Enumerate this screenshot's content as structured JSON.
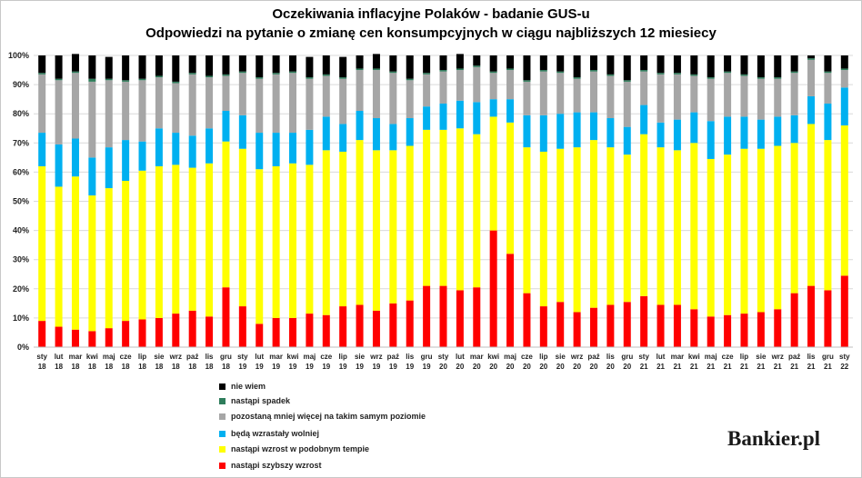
{
  "chart_data": {
    "type": "bar",
    "stacked": true,
    "title": "Oczekiwania inflacyjne Polaków - badanie GUS-u",
    "subtitle": "Odpowiedzi na pytanie o zmianę cen konsumpcyjnych w ciągu najbliższych 12 miesiecy",
    "ylim": [
      0,
      100
    ],
    "yticks": [
      "0%",
      "10%",
      "20%",
      "30%",
      "40%",
      "50%",
      "60%",
      "70%",
      "80%",
      "90%",
      "100%"
    ],
    "grid": true,
    "legend_position": "bottom-left",
    "categories": [
      [
        "sty",
        "18"
      ],
      [
        "lut",
        "18"
      ],
      [
        "mar",
        "18"
      ],
      [
        "kwi",
        "18"
      ],
      [
        "maj",
        "18"
      ],
      [
        "cze",
        "18"
      ],
      [
        "lip",
        "18"
      ],
      [
        "sie",
        "18"
      ],
      [
        "wrz",
        "18"
      ],
      [
        "paź",
        "18"
      ],
      [
        "lis",
        "18"
      ],
      [
        "gru",
        "18"
      ],
      [
        "sty",
        "19"
      ],
      [
        "lut",
        "19"
      ],
      [
        "mar",
        "19"
      ],
      [
        "kwi",
        "19"
      ],
      [
        "maj",
        "19"
      ],
      [
        "cze",
        "19"
      ],
      [
        "lip",
        "19"
      ],
      [
        "sie",
        "19"
      ],
      [
        "wrz",
        "19"
      ],
      [
        "paź",
        "19"
      ],
      [
        "lis",
        "19"
      ],
      [
        "gru",
        "19"
      ],
      [
        "sty",
        "20"
      ],
      [
        "lut",
        "20"
      ],
      [
        "mar",
        "20"
      ],
      [
        "kwi",
        "20"
      ],
      [
        "maj",
        "20"
      ],
      [
        "cze",
        "20"
      ],
      [
        "lip",
        "20"
      ],
      [
        "sie",
        "20"
      ],
      [
        "wrz",
        "20"
      ],
      [
        "paź",
        "20"
      ],
      [
        "lis",
        "20"
      ],
      [
        "gru",
        "20"
      ],
      [
        "sty",
        "21"
      ],
      [
        "lut",
        "21"
      ],
      [
        "mar",
        "21"
      ],
      [
        "kwi",
        "21"
      ],
      [
        "maj",
        "21"
      ],
      [
        "cze",
        "21"
      ],
      [
        "lip",
        "21"
      ],
      [
        "sie",
        "21"
      ],
      [
        "wrz",
        "21"
      ],
      [
        "paź",
        "21"
      ],
      [
        "lis",
        "21"
      ],
      [
        "gru",
        "21"
      ],
      [
        "sty",
        "22"
      ]
    ],
    "series": [
      {
        "name": "nastąpi szybszy wzrost",
        "color": "#ff0000",
        "values": [
          9,
          7,
          6,
          5.5,
          6.5,
          9,
          9.5,
          10,
          11.5,
          12.5,
          10.5,
          20.5,
          14,
          8,
          10,
          10,
          11.5,
          11,
          14,
          14.5,
          12.5,
          15,
          16,
          21,
          21,
          19.5,
          20.5,
          40,
          32,
          18.5,
          14,
          15.5,
          12,
          13.5,
          14.5,
          15.5,
          17.5,
          14.5,
          14.5,
          13,
          10.5,
          11,
          11.5,
          12,
          13,
          18.5,
          21,
          19.5,
          24.5
        ]
      },
      {
        "name": "nastąpi wzrost w podobnym tempie",
        "color": "#ffff00",
        "values": [
          53,
          48,
          52.5,
          46.5,
          48,
          48,
          51,
          52,
          51,
          49,
          52.5,
          50,
          54,
          53,
          52,
          53,
          51,
          56.5,
          53,
          56.5,
          55,
          52.5,
          53,
          53.5,
          53.5,
          55.5,
          52.5,
          39,
          45,
          50,
          53,
          52.5,
          56.5,
          57.5,
          54,
          50.5,
          55.5,
          54,
          53,
          57,
          54,
          55,
          56.5,
          56,
          56,
          51.5,
          55.5,
          51.5,
          51.5
        ]
      },
      {
        "name": "będą wzrastały wolniej",
        "color": "#00b0f0",
        "values": [
          11.5,
          14.5,
          13,
          13,
          14,
          14,
          10,
          13,
          11,
          11,
          12,
          10.5,
          11.5,
          12.5,
          11.5,
          10.5,
          12,
          11.5,
          9.5,
          10,
          11,
          9,
          9.5,
          8,
          9,
          9.5,
          11,
          6,
          8,
          11,
          12.5,
          12,
          12,
          9.5,
          10,
          9.5,
          10,
          8.5,
          10.5,
          10.5,
          13,
          13,
          11,
          10,
          10,
          9.5,
          9.5,
          12.5,
          13
        ]
      },
      {
        "name": "pozostaną mniej więcej na takim samym poziomie",
        "color": "#a6a6a6",
        "values": [
          20,
          22,
          22.5,
          26,
          23,
          20,
          21,
          17.5,
          17,
          21,
          17.5,
          12,
          14.5,
          18.5,
          20,
          20.5,
          17.5,
          14,
          15.5,
          14,
          16.5,
          17.5,
          13,
          11,
          11,
          10.5,
          12,
          9,
          10,
          11.5,
          15,
          14,
          11.5,
          14,
          14.5,
          15.5,
          11.5,
          16.5,
          15.5,
          12.5,
          14.5,
          15,
          14,
          14,
          13,
          14.5,
          12.5,
          10.5,
          6
        ]
      },
      {
        "name": "nastąpi spadek",
        "color": "#2e7d5b",
        "values": [
          0.5,
          0.5,
          0.5,
          1,
          0.5,
          0.5,
          0.5,
          0.5,
          0.5,
          0.5,
          0.5,
          0.5,
          0.5,
          0.5,
          0.5,
          0.5,
          0.5,
          0.5,
          0.5,
          0.5,
          0.5,
          0.5,
          0.5,
          0.5,
          0.5,
          0.5,
          0.5,
          0.5,
          0.5,
          0.5,
          0.5,
          0.5,
          0.5,
          0.5,
          0.5,
          0.5,
          0.5,
          0.5,
          0.5,
          0.5,
          0.5,
          0.5,
          0.5,
          0.5,
          0.5,
          0.5,
          0.5,
          0.5,
          0.5
        ]
      },
      {
        "name": "nie wiem",
        "color": "#000000",
        "values": [
          6,
          8,
          6,
          8,
          7.5,
          8.5,
          8,
          7,
          9,
          6,
          7,
          6.5,
          5.5,
          7.5,
          6,
          5.5,
          7,
          6.5,
          7,
          4.5,
          5,
          5.5,
          8,
          6,
          5,
          5,
          3.5,
          5.5,
          4.5,
          8.5,
          5,
          5.5,
          7.5,
          5,
          6.5,
          8.5,
          5,
          6,
          6,
          6.5,
          7.5,
          5.5,
          6.5,
          7.5,
          7.5,
          5.5,
          1,
          5.5,
          4.5
        ]
      }
    ],
    "legend_order": [
      "nie wiem",
      "nastąpi spadek",
      "pozostaną mniej więcej na takim samym poziomie",
      "będą wzrastały wolniej",
      "nastąpi wzrost w podobnym tempie",
      "nastąpi szybszy wzrost"
    ]
  },
  "logo_text": "Bankier.pl"
}
